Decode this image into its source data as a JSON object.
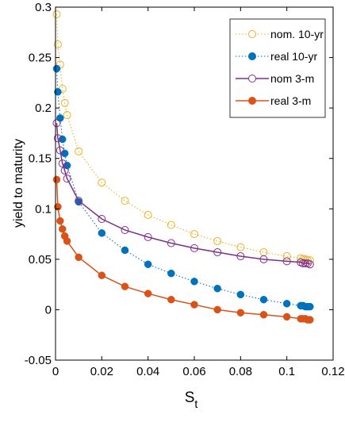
{
  "chart_data": {
    "type": "line",
    "xlabel": "S",
    "xlabel_sub": "t",
    "ylabel": "yield to maturity",
    "xlim": [
      0,
      0.12
    ],
    "ylim": [
      -0.05,
      0.3
    ],
    "xticks": [
      "0",
      "0.02",
      "0.04",
      "0.06",
      "0.08",
      "0.1",
      "0.12"
    ],
    "yticks": [
      "-0.05",
      "0",
      "0.05",
      "0.1",
      "0.15",
      "0.2",
      "0.25",
      "0.3"
    ],
    "grid": false,
    "legend_position": "top-right",
    "x": [
      0.0005,
      0.001,
      0.002,
      0.003,
      0.004,
      0.005,
      0.01,
      0.02,
      0.03,
      0.04,
      0.05,
      0.06,
      0.07,
      0.08,
      0.09,
      0.1,
      0.106,
      0.107,
      0.108,
      0.109,
      0.11
    ],
    "series": [
      {
        "name": "nom. 10-yr",
        "color": "#EDB120",
        "marker": "open",
        "line": "dotted",
        "values": [
          0.293,
          0.263,
          0.243,
          0.219,
          0.205,
          0.193,
          0.157,
          0.126,
          0.108,
          0.094,
          0.084,
          0.075,
          0.068,
          0.062,
          0.057,
          0.053,
          0.051,
          0.05,
          0.05,
          0.049,
          0.049
        ]
      },
      {
        "name": "real 10-yr",
        "color": "#0072BD",
        "marker": "filled",
        "line": "dotted",
        "values": [
          0.239,
          0.216,
          0.19,
          0.169,
          0.155,
          0.143,
          0.107,
          0.076,
          0.059,
          0.045,
          0.036,
          0.028,
          0.021,
          0.015,
          0.01,
          0.006,
          0.004,
          0.004,
          0.003,
          0.003,
          0.003
        ]
      },
      {
        "name": "nom 3-m",
        "color": "#7E2F8E",
        "marker": "open",
        "line": "solid",
        "values": [
          0.185,
          0.17,
          0.158,
          0.145,
          0.138,
          0.13,
          0.108,
          0.09,
          0.079,
          0.072,
          0.066,
          0.061,
          0.057,
          0.053,
          0.05,
          0.048,
          0.047,
          0.046,
          0.046,
          0.046,
          0.045
        ]
      },
      {
        "name": "real 3-m",
        "color": "#D95319",
        "marker": "filled",
        "line": "solid",
        "values": [
          0.129,
          0.102,
          0.088,
          0.08,
          0.073,
          0.068,
          0.052,
          0.034,
          0.023,
          0.016,
          0.01,
          0.005,
          0.0,
          -0.003,
          -0.005,
          -0.007,
          -0.009,
          -0.009,
          -0.009,
          -0.01,
          -0.01
        ]
      }
    ]
  }
}
